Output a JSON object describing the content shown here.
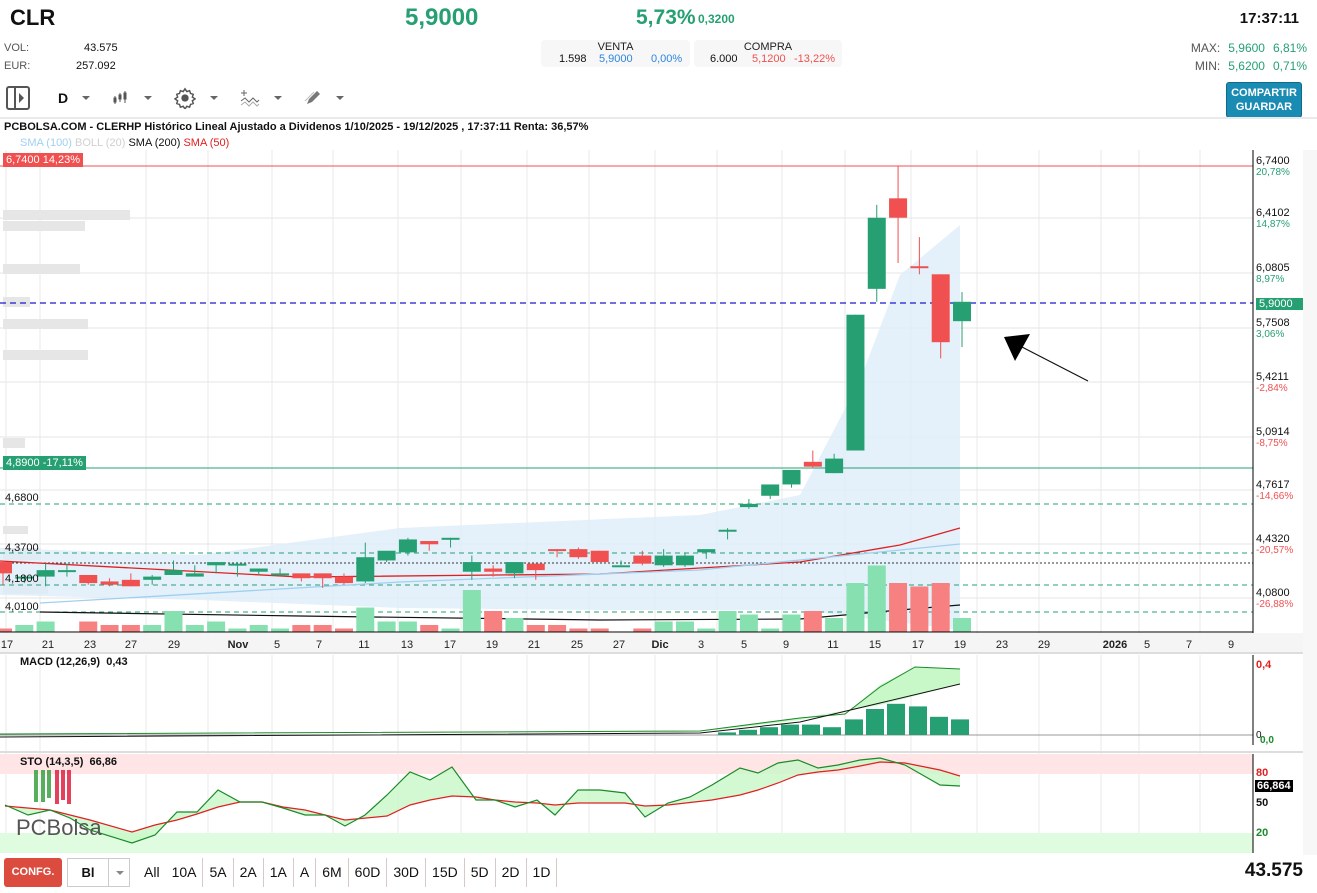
{
  "header": {
    "ticker": "CLR",
    "price": "5,9000",
    "change_pct": "5,73%",
    "change_abs": "0,3200",
    "time": "17:37:11",
    "vol_label": "VOL:",
    "vol_value": "43.575",
    "eur_label": "EUR:",
    "eur_value": "257.092",
    "venta": {
      "label": "VENTA",
      "qty": "1.598",
      "price": "5,9000",
      "pct": "0,00%"
    },
    "compra": {
      "label": "COMPRA",
      "qty": "6.000",
      "price": "5,1200",
      "pct": "-13,22%"
    },
    "max": {
      "label": "MAX:",
      "price": "5,9600",
      "pct": "6,81%"
    },
    "min": {
      "label": "MIN:",
      "price": "5,6200",
      "pct": "0,71%"
    },
    "share_label_1": "COMPARTIR",
    "share_label_2": "GUARDAR"
  },
  "toolbar": {
    "period": "D",
    "icons": [
      "panel-toggle-icon",
      "candlestick-icon",
      "gear-icon",
      "indicator-add-icon",
      "pencil-icon"
    ]
  },
  "chart_title": "PCBOLSA.COM - CLERHP Histórico Lineal Ajustado a Dividenos 1/10/2025 - 19/12/2025 , 17:37:11 Renta: 36,57%",
  "legend": [
    {
      "label": "SMA (100)",
      "color": "#9fd0f0"
    },
    {
      "label": "BOLL (20)",
      "color": "#d0d0d0"
    },
    {
      "label": "SMA (200)",
      "color": "#111111"
    },
    {
      "label": "SMA (50)",
      "color": "#e02020"
    }
  ],
  "tags": {
    "top": "6,7400  14,23%",
    "mid": "4,8900  -17,11%",
    "levels": [
      "4,6800",
      "4,3700",
      "4,1800",
      "4,0100"
    ],
    "last": "5,9000"
  },
  "bottom_bar": {
    "config_label": "CONFG.",
    "select_value": "Bl",
    "periods": [
      "All",
      "10A",
      "5A",
      "2A",
      "1A",
      "A",
      "6M",
      "60D",
      "30D",
      "15D",
      "5D",
      "2D",
      "1D"
    ],
    "volume": "43.575"
  },
  "chart_data": [
    {
      "type": "candlestick",
      "title": "CLERHP Histórico Lineal Ajustado a Dividenos 1/10/2025 - 19/12/2025",
      "y_axis": {
        "ticks": [
          {
            "price": "6,7400",
            "pct": "20,78%"
          },
          {
            "price": "6,4102",
            "pct": "14,87%"
          },
          {
            "price": "6,0805",
            "pct": "8,97%"
          },
          {
            "price": "5,7508",
            "pct": "3,06%"
          },
          {
            "price": "5,4211",
            "pct": "-2,84%"
          },
          {
            "price": "5,0914",
            "pct": "-8,75%"
          },
          {
            "price": "4,7617",
            "pct": "-14,66%"
          },
          {
            "price": "4,4320",
            "pct": "-20,57%"
          },
          {
            "price": "4,0800",
            "pct": "-26,88%"
          }
        ]
      },
      "x_ticks": [
        "17",
        "21",
        "23",
        "27",
        "29",
        "Nov",
        "5",
        "7",
        "11",
        "13",
        "17",
        "19",
        "21",
        "25",
        "27",
        "Dic",
        "3",
        "5",
        "9",
        "11",
        "15",
        "17",
        "19",
        "23",
        "29",
        "2026",
        "5",
        "7",
        "9"
      ],
      "candles": [
        {
          "o": 4.29,
          "h": 4.29,
          "l": 4.15,
          "c": 4.22,
          "v": 1
        },
        {
          "o": 4.19,
          "h": 4.21,
          "l": 4.16,
          "c": 4.2,
          "v": 2
        },
        {
          "o": 4.2,
          "h": 4.28,
          "l": 4.14,
          "c": 4.24,
          "v": 3
        },
        {
          "o": 4.24,
          "h": 4.28,
          "l": 4.2,
          "c": 4.24,
          "v": 0
        },
        {
          "o": 4.21,
          "h": 4.21,
          "l": 4.15,
          "c": 4.16,
          "v": 3
        },
        {
          "o": 4.17,
          "h": 4.19,
          "l": 4.14,
          "c": 4.15,
          "v": 2
        },
        {
          "o": 4.18,
          "h": 4.22,
          "l": 4.14,
          "c": 4.14,
          "v": 2
        },
        {
          "o": 4.18,
          "h": 4.21,
          "l": 4.15,
          "c": 4.2,
          "v": 2
        },
        {
          "o": 4.21,
          "h": 4.3,
          "l": 4.21,
          "c": 4.24,
          "v": 6
        },
        {
          "o": 4.2,
          "h": 4.27,
          "l": 4.2,
          "c": 4.22,
          "v": 2
        },
        {
          "o": 4.27,
          "h": 4.29,
          "l": 4.22,
          "c": 4.29,
          "v": 3
        },
        {
          "o": 4.28,
          "h": 4.29,
          "l": 4.2,
          "c": 4.28,
          "v": 1
        },
        {
          "o": 4.23,
          "h": 4.25,
          "l": 4.21,
          "c": 4.25,
          "v": 2
        },
        {
          "o": 4.22,
          "h": 4.25,
          "l": 4.21,
          "c": 4.22,
          "v": 1
        },
        {
          "o": 4.22,
          "h": 4.22,
          "l": 4.17,
          "c": 4.19,
          "v": 2
        },
        {
          "o": 4.22,
          "h": 4.22,
          "l": 4.13,
          "c": 4.19,
          "v": 2
        },
        {
          "o": 4.2,
          "h": 4.22,
          "l": 4.15,
          "c": 4.16,
          "v": 1
        },
        {
          "o": 4.17,
          "h": 4.41,
          "l": 4.16,
          "c": 4.32,
          "v": 7
        },
        {
          "o": 4.3,
          "h": 4.32,
          "l": 4.29,
          "c": 4.36,
          "v": 3
        },
        {
          "o": 4.35,
          "h": 4.44,
          "l": 4.33,
          "c": 4.43,
          "v": 3
        },
        {
          "o": 4.42,
          "h": 4.42,
          "l": 4.36,
          "c": 4.4,
          "v": 2
        },
        {
          "o": 4.43,
          "h": 4.44,
          "l": 4.38,
          "c": 4.44,
          "v": 1
        },
        {
          "o": 4.23,
          "h": 4.33,
          "l": 4.18,
          "c": 4.29,
          "v": 12
        },
        {
          "o": 4.25,
          "h": 4.27,
          "l": 4.2,
          "c": 4.23,
          "v": 6
        },
        {
          "o": 4.22,
          "h": 4.28,
          "l": 4.19,
          "c": 4.29,
          "v": 4
        },
        {
          "o": 4.28,
          "h": 4.28,
          "l": 4.18,
          "c": 4.24,
          "v": 2
        },
        {
          "o": 4.37,
          "h": 4.37,
          "l": 4.32,
          "c": 4.36,
          "v": 2
        },
        {
          "o": 4.37,
          "h": 4.38,
          "l": 4.31,
          "c": 4.32,
          "v": 1
        },
        {
          "o": 4.36,
          "h": 4.36,
          "l": 4.29,
          "c": 4.29,
          "v": 1
        },
        {
          "o": 4.27,
          "h": 4.3,
          "l": 4.27,
          "c": 4.27,
          "v": 0
        },
        {
          "o": 4.33,
          "h": 4.36,
          "l": 4.27,
          "c": 4.28,
          "v": 1
        },
        {
          "o": 4.27,
          "h": 4.37,
          "l": 4.26,
          "c": 4.33,
          "v": 3
        },
        {
          "o": 4.27,
          "h": 4.35,
          "l": 4.26,
          "c": 4.33,
          "v": 3
        },
        {
          "o": 4.35,
          "h": 4.36,
          "l": 4.31,
          "c": 4.37,
          "v": 1
        },
        {
          "o": 4.49,
          "h": 4.5,
          "l": 4.43,
          "c": 4.49,
          "v": 6
        },
        {
          "o": 4.63,
          "h": 4.68,
          "l": 4.62,
          "c": 4.65,
          "v": 5
        },
        {
          "o": 4.7,
          "h": 4.75,
          "l": 4.68,
          "c": 4.77,
          "v": 1
        },
        {
          "o": 4.77,
          "h": 4.82,
          "l": 4.75,
          "c": 4.86,
          "v": 5
        },
        {
          "o": 4.91,
          "h": 4.98,
          "l": 4.87,
          "c": 4.88,
          "v": 6
        },
        {
          "o": 4.84,
          "h": 4.96,
          "l": 4.84,
          "c": 4.93,
          "v": 4
        },
        {
          "o": 4.98,
          "h": 5.82,
          "l": 4.98,
          "c": 5.82,
          "v": 14
        },
        {
          "o": 5.98,
          "h": 6.5,
          "l": 5.9,
          "c": 6.42,
          "v": 19
        },
        {
          "o": 6.54,
          "h": 6.74,
          "l": 6.14,
          "c": 6.42,
          "v": 14
        },
        {
          "o": 6.12,
          "h": 6.3,
          "l": 6.07,
          "c": 6.11,
          "v": 13
        },
        {
          "o": 6.07,
          "h": 6.07,
          "l": 5.55,
          "c": 5.65,
          "v": 14
        },
        {
          "o": 5.78,
          "h": 5.96,
          "l": 5.62,
          "c": 5.9,
          "v": 4
        }
      ]
    },
    {
      "type": "line",
      "title": "MACD (12,26,9)",
      "value": "0,43",
      "y_ticks": [
        "0,4",
        "0",
        "0,0"
      ]
    },
    {
      "type": "line",
      "title": "STO (14,3,5)",
      "value": "66,86",
      "current_tag": "66,864",
      "y_ticks": [
        "80",
        "50",
        "20"
      ]
    }
  ]
}
